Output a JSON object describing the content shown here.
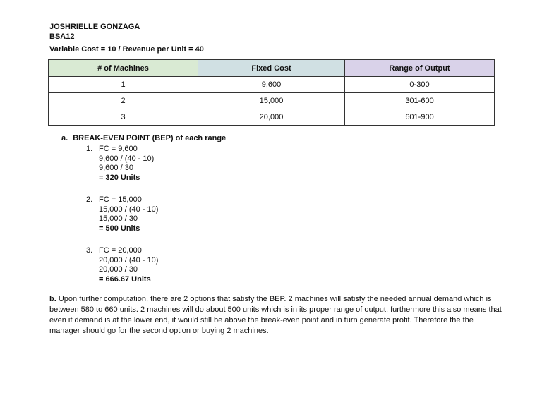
{
  "page": {
    "author_name": "JOSHRIELLE GONZAGA",
    "author_class": "BSA12",
    "subtitle": "Variable Cost = 10 / Revenue per Unit = 40"
  },
  "table": {
    "headers": [
      {
        "label": "# of Machines",
        "bg": "#d9ead3"
      },
      {
        "label": "Fixed Cost",
        "bg": "#d0e0e3"
      },
      {
        "label": "Range of Output",
        "bg": "#d9d2e9"
      }
    ],
    "rows": [
      {
        "machines": "1",
        "fixed_cost": "9,600",
        "range": "0-300"
      },
      {
        "machines": "2",
        "fixed_cost": "15,000",
        "range": "301-600"
      },
      {
        "machines": "3",
        "fixed_cost": "20,000",
        "range": "601-900"
      }
    ]
  },
  "section_a": {
    "label": "a.",
    "title": "BREAK-EVEN POINT (BEP) of each range",
    "items": [
      {
        "number": "1.",
        "lines": [
          "FC = 9,600",
          "9,600 / (40 - 10)",
          "9,600 / 30"
        ],
        "result": "= 320 Units"
      },
      {
        "number": "2.",
        "lines": [
          "FC = 15,000",
          "15,000 / (40 - 10)",
          "15,000 / 30"
        ],
        "result": "= 500 Units"
      },
      {
        "number": "3.",
        "lines": [
          "FC = 20,000",
          "20,000 / (40 - 10)",
          "20,000 / 30"
        ],
        "result": "= 666.67 Units"
      }
    ]
  },
  "section_b": {
    "label": "b.",
    "text": " Upon further computation, there are 2 options that satisfy the BEP. 2 machines will satisfy the needed annual demand which is between 580 to 660 units. 2 machines will do about 500 units which is in its proper range of output, furthermore this also means that even if demand is at the lower end, it would still be above the break-even point and in turn generate profit. Therefore the the manager should go for the second option or buying 2 machines."
  }
}
